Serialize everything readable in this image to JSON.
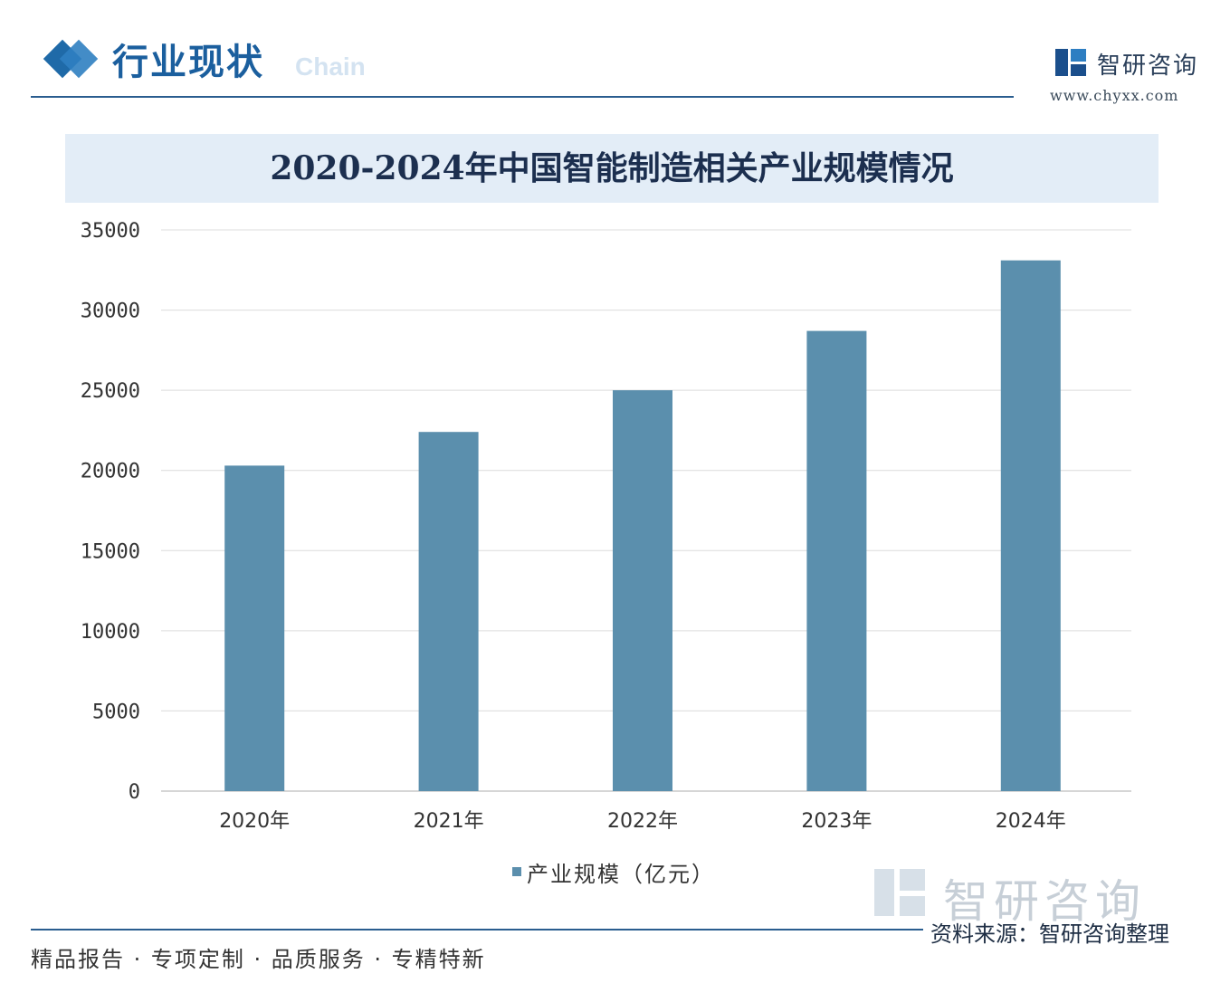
{
  "header": {
    "section_title": "行业现状",
    "section_subtitle": "Chain",
    "brand_name": "智研咨询",
    "brand_url": "www.chyxx.com"
  },
  "chart_data": {
    "type": "bar",
    "title": "2020-2024年中国智能制造相关产业规模情况",
    "categories": [
      "2020年",
      "2021年",
      "2022年",
      "2023年",
      "2024年"
    ],
    "series": [
      {
        "name": "产业规模（亿元）",
        "values": [
          20300,
          22400,
          25000,
          28700,
          33100
        ]
      }
    ],
    "y_ticks": [
      "0",
      "5000",
      "10000",
      "15000",
      "20000",
      "25000",
      "30000",
      "35000"
    ],
    "ylim": [
      0,
      35000
    ],
    "grid": true,
    "legend_position": "bottom",
    "bar_color": "#5b8fad"
  },
  "footer": {
    "watermark_name": "智研咨询",
    "source": "资料来源：智研咨询整理",
    "slogan": "精品报告 · 专项定制 · 品质服务 · 专精特新"
  }
}
